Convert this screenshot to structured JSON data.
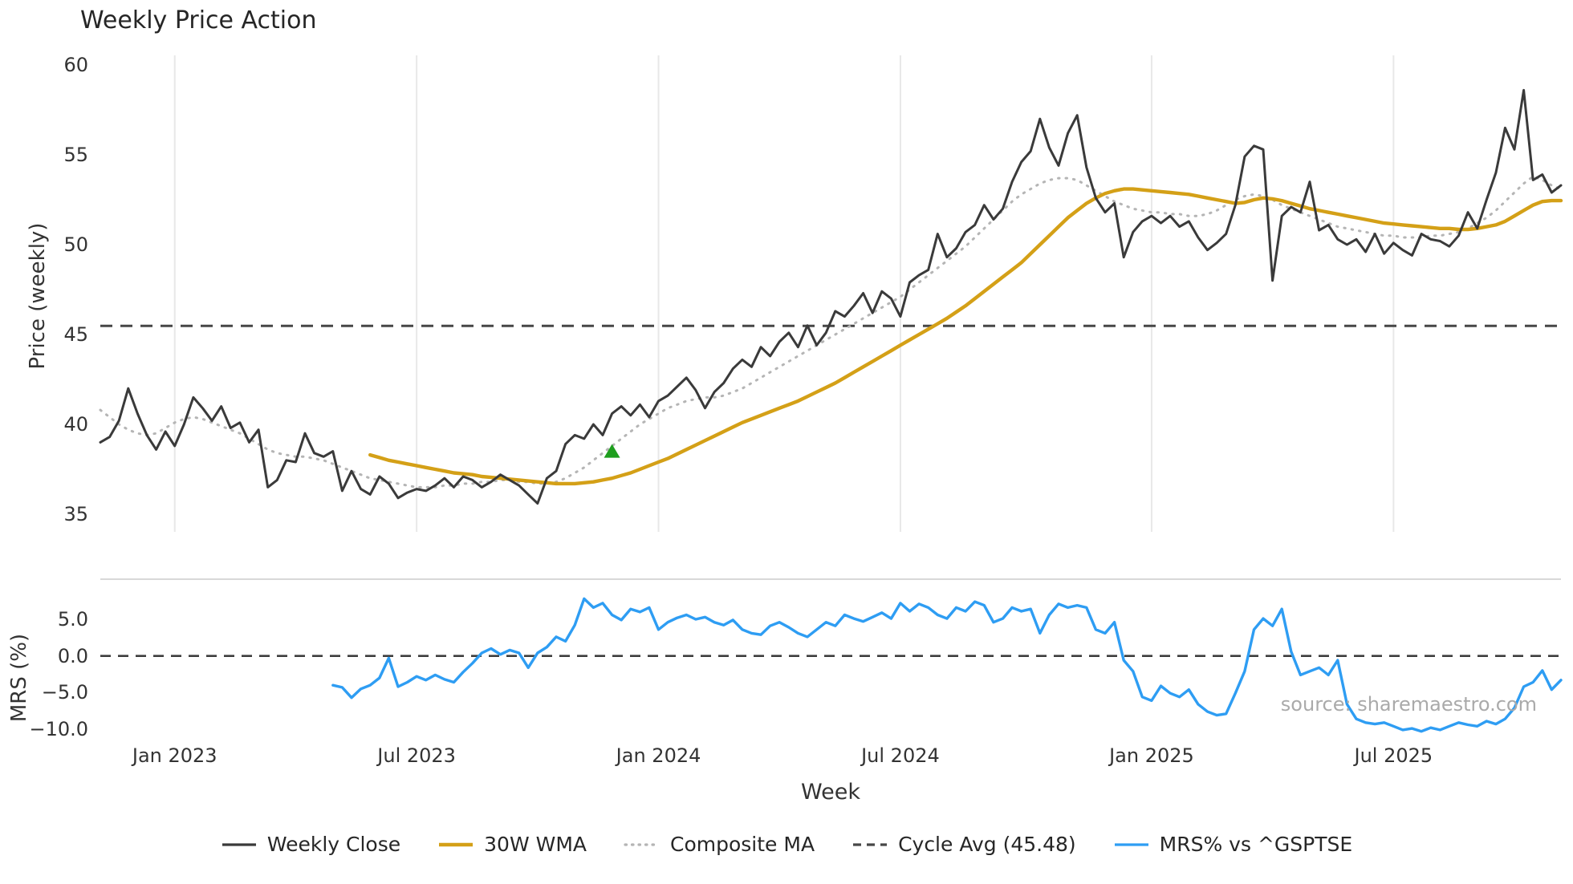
{
  "title": "Weekly Price Action",
  "source_note": "source: sharemaestro.com",
  "axes": {
    "price_ylabel": "Price (weekly)",
    "mrs_ylabel": "MRS (%)",
    "xlabel": "Week"
  },
  "colors": {
    "weekly_close": "#3a3a3a",
    "wma": "#d4a017",
    "composite_ma": "#b5b5b5",
    "cycle_avg": "#474747",
    "mrs": "#2e9df3",
    "signal": "#1e9e1e",
    "gridline": "#e8e8e8"
  },
  "legend": [
    {
      "id": "weekly-close",
      "label": "Weekly Close",
      "color": "#3a3a3a",
      "style": "solid"
    },
    {
      "id": "wma",
      "label": "30W WMA",
      "color": "#d4a017",
      "style": "solid"
    },
    {
      "id": "composite-ma",
      "label": "Composite MA",
      "color": "#b5b5b5",
      "style": "dotted"
    },
    {
      "id": "cycle-avg",
      "label": "Cycle Avg (45.48)",
      "color": "#474747",
      "style": "dashed"
    },
    {
      "id": "mrs",
      "label": "MRS% vs ^GSPTSE",
      "color": "#2e9df3",
      "style": "solid"
    }
  ],
  "chart_data": [
    {
      "type": "line",
      "panel": "price",
      "title": "Weekly Price Action",
      "ylabel": "Price (weekly)",
      "xlabel": "Week",
      "ylim": [
        34.2,
        60.8
      ],
      "yticks": [
        35,
        40,
        45,
        50,
        55,
        60
      ],
      "ytick_labels": [
        "35",
        "40",
        "45",
        "50",
        "55",
        "60"
      ],
      "grid": "vertical",
      "x_axis": {
        "unit": "week",
        "total_weeks": 158,
        "tick_weeks": [
          8,
          34,
          60,
          86,
          113,
          139
        ],
        "tick_labels": [
          "Jan 2023",
          "Jul 2023",
          "Jan 2024",
          "Jul 2024",
          "Jan 2025",
          "Jul 2025"
        ]
      },
      "cycle_avg": 45.48,
      "signal_marker": {
        "week": 55,
        "value": 38.5,
        "shape": "triangle-up",
        "color": "#1e9e1e"
      },
      "series": [
        {
          "name": "Weekly Close",
          "color": "#3a3a3a",
          "style": "solid",
          "start_week": 0,
          "values": [
            39.0,
            39.3,
            40.2,
            42.0,
            40.6,
            39.4,
            38.6,
            39.6,
            38.8,
            40.0,
            41.5,
            40.9,
            40.2,
            41.0,
            39.8,
            40.1,
            39.0,
            39.7,
            36.5,
            36.9,
            38.0,
            37.9,
            39.5,
            38.4,
            38.2,
            38.5,
            36.3,
            37.4,
            36.4,
            36.1,
            37.1,
            36.7,
            35.9,
            36.2,
            36.4,
            36.3,
            36.6,
            37.0,
            36.5,
            37.1,
            36.9,
            36.5,
            36.8,
            37.2,
            36.9,
            36.6,
            36.1,
            35.6,
            37.0,
            37.4,
            38.9,
            39.4,
            39.2,
            40.0,
            39.4,
            40.6,
            41.0,
            40.5,
            41.1,
            40.4,
            41.3,
            41.6,
            42.1,
            42.6,
            41.9,
            40.9,
            41.8,
            42.3,
            43.1,
            43.6,
            43.2,
            44.3,
            43.8,
            44.6,
            45.1,
            44.3,
            45.5,
            44.4,
            45.1,
            46.3,
            46.0,
            46.6,
            47.3,
            46.2,
            47.4,
            47.0,
            46.0,
            47.9,
            48.3,
            48.6,
            50.6,
            49.3,
            49.8,
            50.7,
            51.1,
            52.2,
            51.4,
            52.0,
            53.5,
            54.6,
            55.2,
            57.0,
            55.4,
            54.4,
            56.2,
            57.2,
            54.3,
            52.6,
            51.8,
            52.3,
            49.3,
            50.7,
            51.3,
            51.6,
            51.2,
            51.6,
            51.0,
            51.3,
            50.4,
            49.7,
            50.1,
            50.6,
            52.2,
            54.9,
            55.5,
            55.3,
            48.0,
            51.6,
            52.1,
            51.8,
            53.5,
            50.8,
            51.1,
            50.3,
            50.0,
            50.3,
            49.6,
            50.6,
            49.5,
            50.1,
            49.7,
            49.4,
            50.6,
            50.3,
            50.2,
            49.9,
            50.5,
            51.8,
            50.9,
            52.5,
            54.0,
            56.5,
            55.3,
            58.6,
            53.6,
            53.9,
            52.9,
            53.3
          ]
        },
        {
          "name": "30W WMA",
          "color": "#d4a017",
          "style": "solid",
          "start_week": 29,
          "values": [
            38.3,
            38.15,
            38.0,
            37.9,
            37.8,
            37.7,
            37.6,
            37.5,
            37.4,
            37.3,
            37.25,
            37.2,
            37.1,
            37.05,
            37.0,
            36.95,
            36.9,
            36.85,
            36.8,
            36.75,
            36.7,
            36.7,
            36.7,
            36.75,
            36.8,
            36.9,
            37.0,
            37.15,
            37.3,
            37.5,
            37.7,
            37.9,
            38.1,
            38.35,
            38.6,
            38.85,
            39.1,
            39.35,
            39.6,
            39.85,
            40.1,
            40.3,
            40.5,
            40.7,
            40.9,
            41.1,
            41.3,
            41.55,
            41.8,
            42.05,
            42.3,
            42.6,
            42.9,
            43.2,
            43.5,
            43.8,
            44.1,
            44.4,
            44.7,
            45.0,
            45.3,
            45.6,
            45.9,
            46.25,
            46.6,
            47.0,
            47.4,
            47.8,
            48.2,
            48.6,
            49.0,
            49.5,
            50.0,
            50.5,
            51.0,
            51.5,
            51.9,
            52.3,
            52.6,
            52.85,
            53.0,
            53.1,
            53.1,
            53.05,
            53.0,
            52.95,
            52.9,
            52.85,
            52.8,
            52.7,
            52.6,
            52.5,
            52.4,
            52.3,
            52.35,
            52.5,
            52.6,
            52.55,
            52.45,
            52.3,
            52.15,
            52.0,
            51.9,
            51.8,
            51.7,
            51.6,
            51.5,
            51.4,
            51.3,
            51.2,
            51.15,
            51.1,
            51.05,
            51.0,
            50.95,
            50.9,
            50.9,
            50.85,
            50.85,
            50.9,
            51.0,
            51.1,
            51.3,
            51.6,
            51.9,
            52.2,
            52.4,
            52.45,
            52.45
          ]
        },
        {
          "name": "Composite MA",
          "color": "#b5b5b5",
          "style": "dotted",
          "start_week": 0,
          "values": [
            40.8,
            40.4,
            40.0,
            39.7,
            39.5,
            39.4,
            39.5,
            39.8,
            40.1,
            40.3,
            40.4,
            40.3,
            40.1,
            39.9,
            39.7,
            39.5,
            39.2,
            38.9,
            38.6,
            38.4,
            38.3,
            38.2,
            38.2,
            38.1,
            38.0,
            37.8,
            37.6,
            37.4,
            37.2,
            37.0,
            36.9,
            36.8,
            36.7,
            36.6,
            36.5,
            36.5,
            36.5,
            36.6,
            36.6,
            36.7,
            36.7,
            36.8,
            36.8,
            36.9,
            36.9,
            36.8,
            36.8,
            36.7,
            36.7,
            36.8,
            37.0,
            37.3,
            37.6,
            38.0,
            38.4,
            38.8,
            39.2,
            39.6,
            40.0,
            40.3,
            40.6,
            40.9,
            41.1,
            41.3,
            41.4,
            41.5,
            41.5,
            41.6,
            41.8,
            42.0,
            42.3,
            42.6,
            42.9,
            43.2,
            43.5,
            43.8,
            44.1,
            44.4,
            44.7,
            45.0,
            45.3,
            45.6,
            45.9,
            46.2,
            46.5,
            46.8,
            47.1,
            47.5,
            47.9,
            48.3,
            48.7,
            49.1,
            49.5,
            49.9,
            50.4,
            50.9,
            51.4,
            51.9,
            52.4,
            52.8,
            53.1,
            53.4,
            53.6,
            53.7,
            53.7,
            53.6,
            53.3,
            53.0,
            52.7,
            52.4,
            52.2,
            52.0,
            51.9,
            51.8,
            51.8,
            51.7,
            51.7,
            51.6,
            51.6,
            51.7,
            51.9,
            52.2,
            52.5,
            52.7,
            52.8,
            52.7,
            52.5,
            52.2,
            52.0,
            51.8,
            51.6,
            51.4,
            51.2,
            51.0,
            50.9,
            50.8,
            50.7,
            50.6,
            50.5,
            50.5,
            50.4,
            50.4,
            50.4,
            50.5,
            50.5,
            50.6,
            50.7,
            50.9,
            51.2,
            51.5,
            51.9,
            52.4,
            52.9,
            53.4,
            53.8,
            53.6,
            53.3,
            53.1
          ]
        }
      ]
    },
    {
      "type": "line",
      "panel": "mrs",
      "ylabel": "MRS (%)",
      "ylim": [
        -11.8,
        8.7
      ],
      "yticks": [
        5.0,
        0.0,
        -5.0,
        -10.0
      ],
      "ytick_labels": [
        "5.0",
        "0.0",
        "−5.0",
        "−10.0"
      ],
      "zero_line": 0.0,
      "series": [
        {
          "name": "MRS% vs ^GSPTSE",
          "color": "#2e9df3",
          "style": "solid",
          "start_week": 25,
          "values": [
            -4.0,
            -4.3,
            -5.7,
            -4.5,
            -4.0,
            -3.0,
            -0.3,
            -4.2,
            -3.6,
            -2.8,
            -3.3,
            -2.6,
            -3.2,
            -3.6,
            -2.2,
            -1.0,
            0.4,
            1.0,
            0.2,
            0.8,
            0.4,
            -1.6,
            0.4,
            1.2,
            2.6,
            2.0,
            4.2,
            7.8,
            6.6,
            7.2,
            5.6,
            4.9,
            6.4,
            6.0,
            6.6,
            3.6,
            4.6,
            5.2,
            5.6,
            5.0,
            5.3,
            4.6,
            4.2,
            4.9,
            3.6,
            3.1,
            2.9,
            4.1,
            4.6,
            3.9,
            3.1,
            2.6,
            3.6,
            4.6,
            4.1,
            5.6,
            5.1,
            4.7,
            5.3,
            5.9,
            5.1,
            7.2,
            6.1,
            7.1,
            6.6,
            5.6,
            5.1,
            6.6,
            6.1,
            7.4,
            6.9,
            4.6,
            5.1,
            6.6,
            6.1,
            6.4,
            3.1,
            5.6,
            7.1,
            6.6,
            6.9,
            6.6,
            3.6,
            3.1,
            4.6,
            -0.6,
            -2.1,
            -5.6,
            -6.1,
            -4.1,
            -5.1,
            -5.6,
            -4.6,
            -6.6,
            -7.6,
            -8.1,
            -7.9,
            -5.1,
            -2.1,
            3.6,
            5.1,
            4.1,
            6.4,
            0.6,
            -2.6,
            -2.1,
            -1.6,
            -2.6,
            -0.6,
            -6.6,
            -8.6,
            -9.1,
            -9.3,
            -9.1,
            -9.6,
            -10.1,
            -9.9,
            -10.3,
            -9.8,
            -10.1,
            -9.6,
            -9.1,
            -9.4,
            -9.6,
            -8.9,
            -9.3,
            -8.6,
            -7.1,
            -4.2,
            -3.6,
            -2.0,
            -4.6,
            -3.3
          ]
        }
      ]
    }
  ]
}
